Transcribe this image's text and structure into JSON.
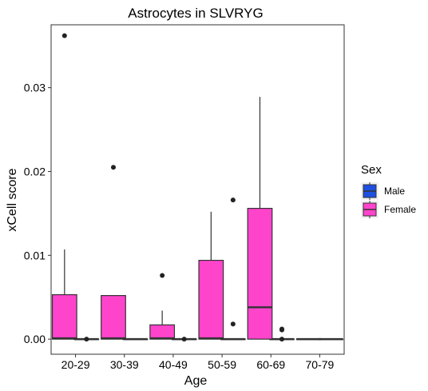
{
  "chart_data": {
    "type": "box",
    "title": "Astrocytes in SLVRYG",
    "xlabel": "Age",
    "ylabel": "xCell score",
    "categories": [
      "20-29",
      "30-39",
      "40-49",
      "50-59",
      "60-69",
      "70-79"
    ],
    "ylim": [
      -0.0018,
      0.0375
    ],
    "yticks": [
      0.0,
      0.01,
      0.02,
      0.03
    ],
    "ytick_labels": [
      "0.00",
      "0.01",
      "0.02",
      "0.03"
    ],
    "grid": false,
    "legend": {
      "title": "Sex",
      "position": "right"
    },
    "series": [
      {
        "name": "Male",
        "color": "#1d4fe0",
        "boxes": [
          {
            "category": "20-29",
            "min": 0,
            "q1": 0,
            "median": 0,
            "q3": 0,
            "max": 0,
            "outliers": [
              0.0
            ]
          },
          {
            "category": "30-39",
            "min": 0,
            "q1": 0,
            "median": 0,
            "q3": 0,
            "max": 0,
            "outliers": []
          },
          {
            "category": "40-49",
            "min": 0,
            "q1": 0,
            "median": 0,
            "q3": 0,
            "max": 0,
            "outliers": [
              0.0
            ]
          },
          {
            "category": "50-59",
            "min": 0,
            "q1": 0,
            "median": 0,
            "q3": 0,
            "max": 0,
            "outliers": [
              0.0018,
              0.0166
            ]
          },
          {
            "category": "60-69",
            "min": 0,
            "q1": 0,
            "median": 0,
            "q3": 0,
            "max": 0,
            "outliers": [
              0.0,
              0.0011,
              0.0012
            ]
          },
          {
            "category": "70-79",
            "min": 0,
            "q1": 0,
            "median": 0,
            "q3": 0,
            "max": 0,
            "outliers": []
          }
        ]
      },
      {
        "name": "Female",
        "color": "#ff44cc",
        "boxes": [
          {
            "category": "20-29",
            "min": 0,
            "q1": 0,
            "median": 0.0001,
            "q3": 0.0053,
            "max": 0.0107,
            "outliers": [
              0.0362
            ]
          },
          {
            "category": "30-39",
            "min": 0,
            "q1": 0,
            "median": 0.0001,
            "q3": 0.0052,
            "max": 0.0052,
            "outliers": [
              0.0205
            ]
          },
          {
            "category": "40-49",
            "min": 0,
            "q1": 0,
            "median": 0.0001,
            "q3": 0.0017,
            "max": 0.0034,
            "outliers": [
              0.0076
            ]
          },
          {
            "category": "50-59",
            "min": 0,
            "q1": 0,
            "median": 0.0001,
            "q3": 0.0094,
            "max": 0.0152,
            "outliers": []
          },
          {
            "category": "60-69",
            "min": 0,
            "q1": 0,
            "median": 0.0038,
            "q3": 0.0156,
            "max": 0.0289,
            "outliers": []
          },
          {
            "category": "70-79",
            "min": 0,
            "q1": 0,
            "median": 0,
            "q3": 0,
            "max": 0,
            "outliers": []
          }
        ]
      }
    ]
  }
}
